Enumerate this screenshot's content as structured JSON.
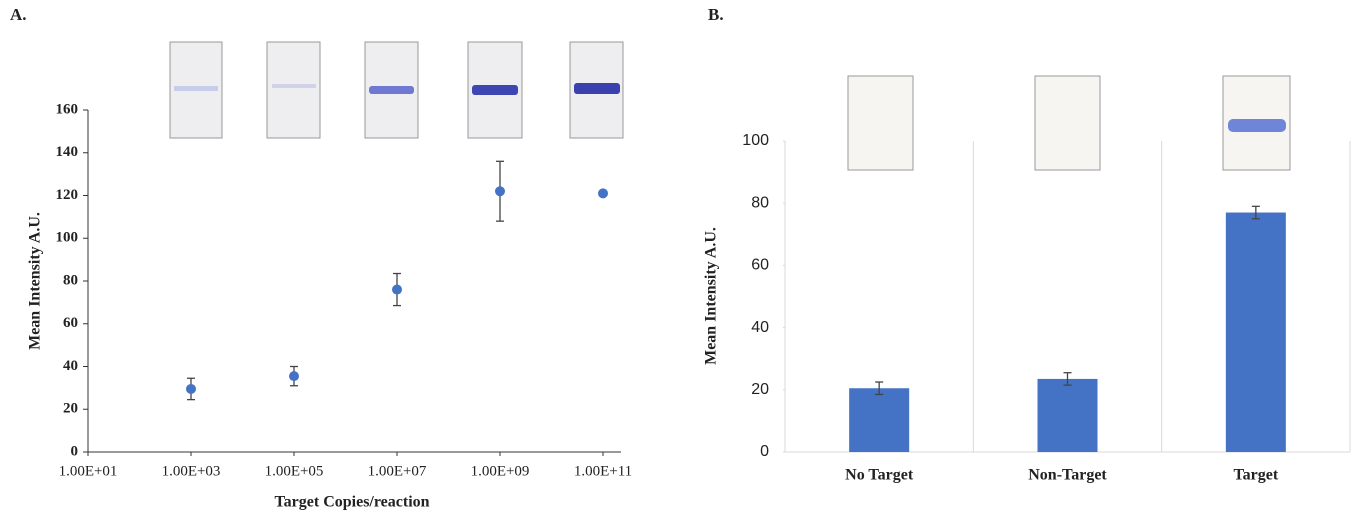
{
  "chart_data": [
    {
      "type": "scatter",
      "label": "A.",
      "x": [
        1000,
        100000,
        10000000,
        1000000000,
        100000000000
      ],
      "values": [
        29.5,
        35.5,
        76,
        122,
        121
      ],
      "errors": [
        5,
        4.5,
        7.5,
        14,
        0
      ],
      "color": "#4472c4",
      "xlabel": "Target Copies/reaction",
      "ylabel": "Mean Intensity A.U.",
      "xscale": "log",
      "xlim": [
        10,
        100000000000
      ],
      "xticks": [
        {
          "value": 10,
          "label": "1.00E+01"
        },
        {
          "value": 1000,
          "label": "1.00E+03"
        },
        {
          "value": 100000,
          "label": "1.00E+05"
        },
        {
          "value": 10000000,
          "label": "1.00E+07"
        },
        {
          "value": 1000000000,
          "label": "1.00E+09"
        },
        {
          "value": 100000000000,
          "label": "1.00E+11"
        }
      ],
      "ylim": [
        0,
        160
      ],
      "yticks": [
        0,
        20,
        40,
        60,
        80,
        100,
        120,
        140,
        160
      ]
    },
    {
      "type": "bar",
      "label": "B.",
      "categories": [
        "No Target",
        "Non-Target",
        "Target"
      ],
      "values": [
        20.5,
        23.5,
        77
      ],
      "errors": [
        2,
        2,
        2
      ],
      "color": "#4472c4",
      "ylabel": "Mean Intensity A.U.",
      "ylim": [
        0,
        100
      ],
      "yticks": [
        0,
        20,
        40,
        60,
        80,
        100
      ]
    }
  ]
}
